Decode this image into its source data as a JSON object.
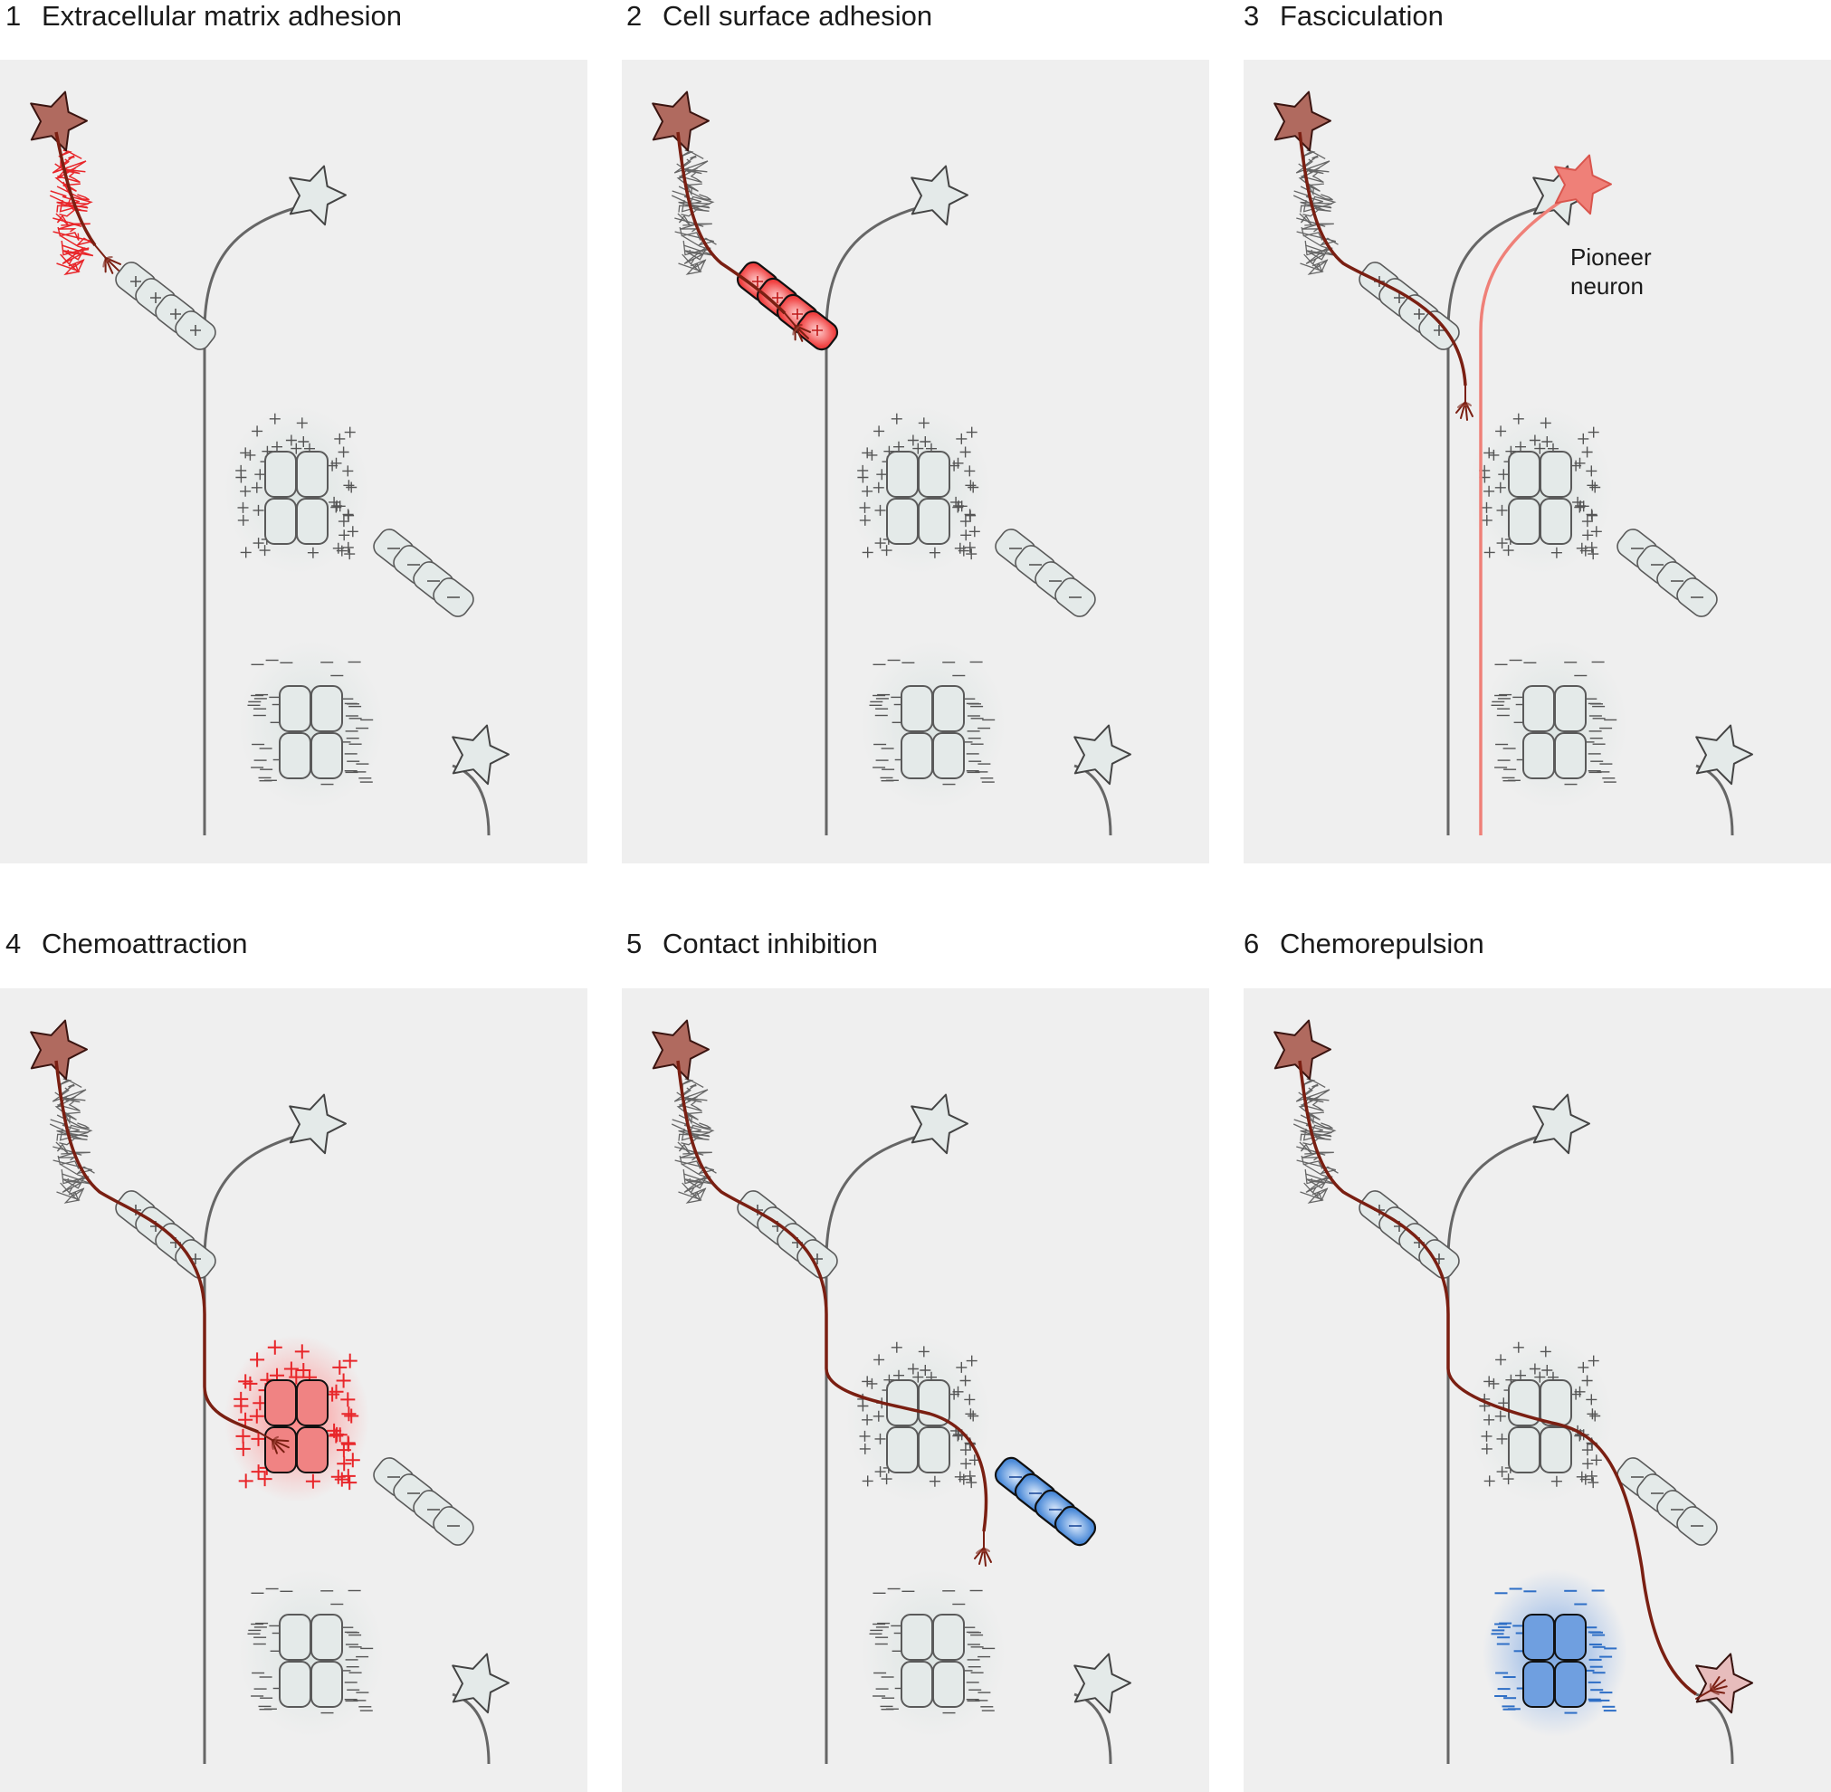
{
  "panels": [
    {
      "number": "1",
      "title": "Extracellular matrix adhesion"
    },
    {
      "number": "2",
      "title": "Cell surface adhesion"
    },
    {
      "number": "3",
      "title": "Fasciculation",
      "annotation": [
        "Pioneer",
        "neuron"
      ]
    },
    {
      "number": "4",
      "title": "Chemoattraction"
    },
    {
      "number": "5",
      "title": "Contact inhibition"
    },
    {
      "number": "6",
      "title": "Chemorepulsion"
    }
  ],
  "colors": {
    "panel_bg": "#efefef",
    "axon": "#7a1f12",
    "neuron_body": "#b06a5f",
    "pioneer": "#ef8078",
    "attractive": "#e8262a",
    "repulsive": "#2f6fc6",
    "cell_fill": "#e4eae9",
    "gray_line": "#5a5a5a"
  },
  "icons": [
    "neuron-icon",
    "cell-row-icon",
    "cell-cluster-icon",
    "growth-cone-icon",
    "matrix-fibers-icon"
  ]
}
